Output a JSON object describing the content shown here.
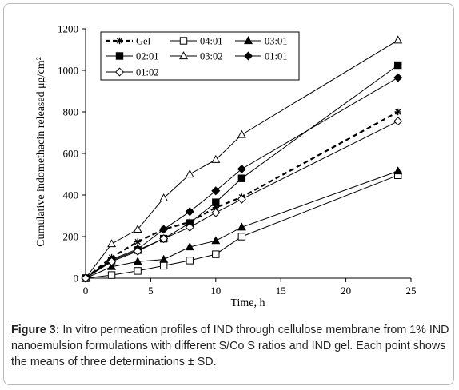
{
  "caption": {
    "label": "Figure 3:",
    "text": " In vitro permeation profiles of IND through cellulose membrane from 1% IND nanoemulsion formulations with different S/Co S ratios and IND gel. Each point shows the means of three determinations ± SD."
  },
  "chart_data": {
    "type": "line",
    "xlabel": "Time, h",
    "ylabel": "Cumulative indomethacin released μg/cm²",
    "xlim": [
      0,
      25
    ],
    "ylim": [
      0,
      1200
    ],
    "xticks": [
      0,
      5,
      10,
      15,
      20,
      25
    ],
    "yticks": [
      0,
      200,
      400,
      600,
      800,
      1000,
      1200
    ],
    "grid": false,
    "legend_position": "top-left",
    "series": [
      {
        "name": "Gel",
        "marker": "star",
        "dashed": true,
        "color": "#000000",
        "x": [
          0,
          2,
          4,
          6,
          8,
          10,
          12,
          24
        ],
        "y": [
          0,
          100,
          175,
          235,
          270,
          340,
          390,
          800
        ]
      },
      {
        "name": "04:01",
        "marker": "square-open",
        "dashed": false,
        "color": "#000000",
        "x": [
          0,
          2,
          4,
          6,
          8,
          10,
          12,
          24
        ],
        "y": [
          0,
          15,
          35,
          60,
          85,
          115,
          200,
          495
        ]
      },
      {
        "name": "03:01",
        "marker": "triangle-filled",
        "dashed": false,
        "color": "#000000",
        "x": [
          0,
          2,
          4,
          6,
          8,
          10,
          12,
          24
        ],
        "y": [
          0,
          55,
          80,
          90,
          150,
          180,
          245,
          515
        ]
      },
      {
        "name": "02:01",
        "marker": "square-filled",
        "dashed": false,
        "color": "#000000",
        "x": [
          0,
          2,
          4,
          6,
          8,
          10,
          12,
          24
        ],
        "y": [
          0,
          85,
          135,
          190,
          265,
          365,
          480,
          1025
        ]
      },
      {
        "name": "03:02",
        "marker": "triangle-open",
        "dashed": false,
        "color": "#000000",
        "x": [
          0,
          2,
          4,
          6,
          8,
          10,
          12,
          24
        ],
        "y": [
          0,
          165,
          235,
          385,
          500,
          570,
          690,
          1145
        ]
      },
      {
        "name": "01:01",
        "marker": "diamond-filled",
        "dashed": false,
        "color": "#000000",
        "x": [
          0,
          2,
          4,
          6,
          8,
          10,
          12,
          24
        ],
        "y": [
          0,
          90,
          140,
          235,
          320,
          420,
          525,
          965
        ]
      },
      {
        "name": "01:02",
        "marker": "diamond-open",
        "dashed": false,
        "color": "#000000",
        "x": [
          0,
          2,
          4,
          6,
          8,
          10,
          12,
          24
        ],
        "y": [
          0,
          80,
          130,
          190,
          245,
          315,
          380,
          755
        ]
      }
    ]
  }
}
